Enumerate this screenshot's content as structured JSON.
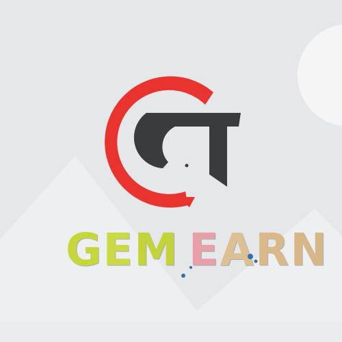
{
  "brand": {
    "word_one": "GEM",
    "word_two": "EARN",
    "letters": {
      "g": "G",
      "e1": "E",
      "m": "M",
      "e2": "E",
      "a": "A",
      "r": "R",
      "n": "N"
    }
  },
  "colors": {
    "background": "#e6e7e9",
    "mountain_light": "#eeeff1",
    "circle": "#f5f5f6",
    "logo_red": "#e9332e",
    "logo_dark": "#3a3b3d",
    "letter_green": "#c5d73a",
    "letter_pink": "#e8a0a8",
    "letter_tan": "#d9b98a",
    "splash_blue": "#2f6fb0"
  }
}
